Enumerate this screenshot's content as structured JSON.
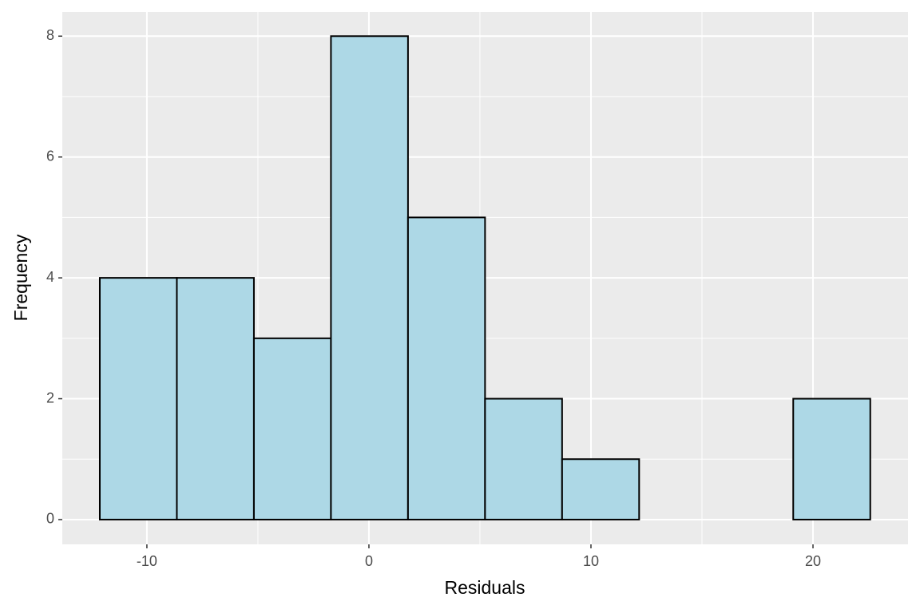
{
  "chart_data": {
    "type": "histogram",
    "xlabel": "Residuals",
    "ylabel": "Frequency",
    "bins": [
      -12.12,
      -8.65,
      -5.18,
      -1.71,
      1.76,
      5.23,
      8.7,
      12.17,
      15.64,
      19.11,
      22.58
    ],
    "values": [
      4,
      4,
      3,
      8,
      5,
      2,
      1,
      0,
      0,
      2
    ],
    "color": "#add8e6",
    "edgecolor": "#000000",
    "xlim": [
      -13.81,
      24.28
    ],
    "xticks": [
      -10,
      0,
      10,
      20
    ],
    "ylim": [
      -0.41,
      8.4
    ],
    "yticks": [
      0,
      2,
      4,
      6,
      8
    ],
    "grid": true
  }
}
